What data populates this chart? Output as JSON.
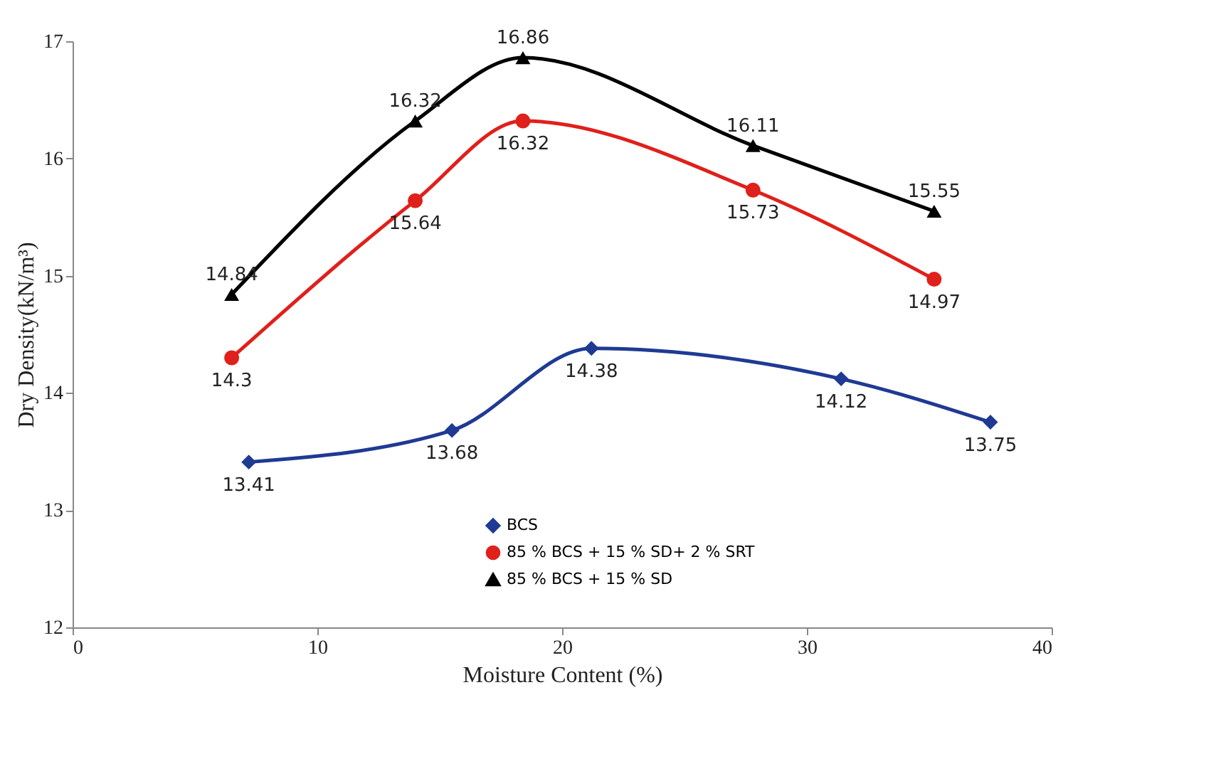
{
  "chart_data": {
    "type": "line",
    "xlabel": "Moisture Content (%)",
    "ylabel": "Dry Density(kN/m³)",
    "xlim": [
      0,
      40
    ],
    "xticks": [
      0,
      10,
      20,
      30,
      40
    ],
    "ylim": [
      12,
      17
    ],
    "yticks": [
      12,
      13,
      14,
      15,
      16,
      17
    ],
    "grid": false,
    "legend": "bottom",
    "data_labels": true,
    "series": [
      {
        "name": "BCS",
        "color": "#1f3a93",
        "marker": "diamond",
        "x": [
          7.2,
          15.5,
          21.2,
          31.4,
          37.5
        ],
        "values": [
          13.41,
          13.68,
          14.38,
          14.12,
          13.75
        ]
      },
      {
        "name": "85 % BCS + 15 % SD+ 2 % SRT",
        "color": "#e0201b",
        "marker": "circle",
        "x": [
          6.5,
          14.0,
          18.4,
          27.8,
          35.2
        ],
        "values": [
          14.3,
          15.64,
          16.32,
          15.73,
          14.97
        ]
      },
      {
        "name": "85 % BCS + 15 % SD",
        "color": "#000000",
        "marker": "triangle",
        "x": [
          6.5,
          14.0,
          18.4,
          27.8,
          35.2
        ],
        "values": [
          14.84,
          16.32,
          16.86,
          16.11,
          15.55
        ]
      }
    ]
  }
}
